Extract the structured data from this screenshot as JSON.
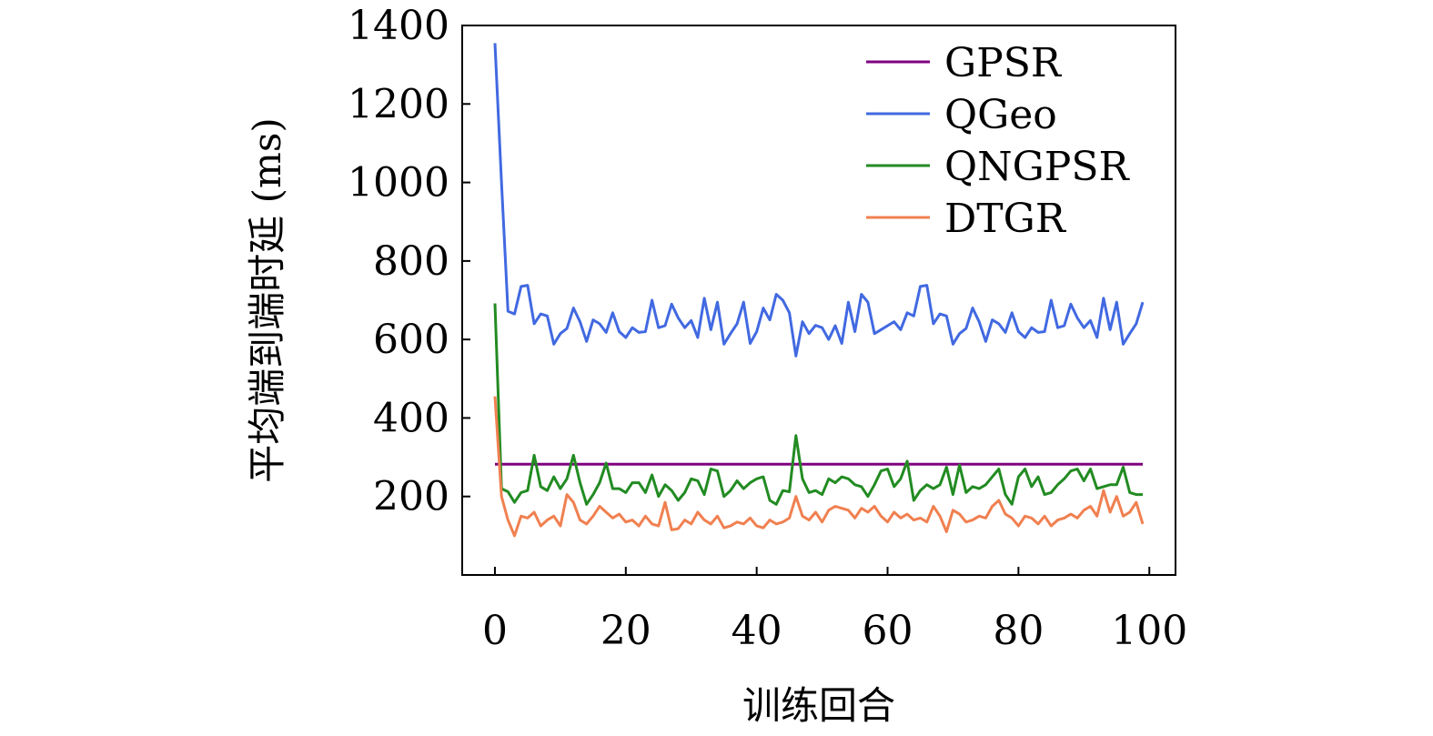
{
  "chart_data": {
    "type": "line",
    "title": "",
    "xlabel": "训练回合",
    "ylabel": "平均端到端时延 (ms)",
    "xlim": [
      -5,
      104
    ],
    "ylim": [
      0,
      1400
    ],
    "xticks": [
      0,
      20,
      40,
      60,
      80,
      100
    ],
    "yticks": [
      200,
      400,
      600,
      800,
      1000,
      1200,
      1400
    ],
    "grid": false,
    "legend_position": "top-right",
    "series": [
      {
        "name": "GPSR",
        "color": "#800080",
        "x": [
          0,
          99
        ],
        "y": [
          282,
          282
        ]
      },
      {
        "name": "QGeo",
        "color": "#4169E1",
        "x": [
          0,
          1,
          2,
          3,
          4,
          5,
          6,
          7,
          8,
          9,
          10,
          11,
          12,
          13,
          14,
          15,
          16,
          17,
          18,
          19,
          20,
          21,
          22,
          23,
          24,
          25,
          26,
          27,
          28,
          29,
          30,
          31,
          32,
          33,
          34,
          35,
          36,
          37,
          38,
          39,
          40,
          41,
          42,
          43,
          44,
          45,
          46,
          47,
          48,
          49,
          50,
          51,
          52,
          53,
          54,
          55,
          56,
          57,
          58,
          59,
          60,
          61,
          62,
          63,
          64,
          65,
          66,
          67,
          68,
          69,
          70,
          71,
          72,
          73,
          74,
          75,
          76,
          77,
          78,
          79,
          80,
          81,
          82,
          83,
          84,
          85,
          86,
          87,
          88,
          89,
          90,
          91,
          92,
          93,
          94,
          95,
          96,
          97,
          98,
          99
        ],
        "y": [
          1355,
          1000,
          672,
          665,
          735,
          738,
          640,
          665,
          660,
          588,
          615,
          628,
          680,
          645,
          595,
          650,
          640,
          618,
          668,
          620,
          605,
          630,
          618,
          620,
          700,
          630,
          635,
          690,
          655,
          630,
          648,
          605,
          705,
          625,
          695,
          588,
          615,
          640,
          695,
          590,
          620,
          680,
          650,
          715,
          700,
          668,
          558,
          645,
          615,
          636,
          630,
          600,
          635,
          590,
          695,
          620,
          715,
          695,
          615,
          625,
          635,
          645,
          625,
          668,
          660,
          735,
          738,
          640,
          665,
          660,
          588,
          615,
          628,
          680,
          645,
          595,
          650,
          640,
          618,
          668,
          620,
          605,
          630,
          618,
          620,
          700,
          630,
          635,
          690,
          655,
          630,
          648,
          605,
          705,
          625,
          695,
          588,
          615,
          640,
          695
        ]
      },
      {
        "name": "QNGPSR",
        "color": "#228B22",
        "x": [
          0,
          1,
          2,
          3,
          4,
          5,
          6,
          7,
          8,
          9,
          10,
          11,
          12,
          13,
          14,
          15,
          16,
          17,
          18,
          19,
          20,
          21,
          22,
          23,
          24,
          25,
          26,
          27,
          28,
          29,
          30,
          31,
          32,
          33,
          34,
          35,
          36,
          37,
          38,
          39,
          40,
          41,
          42,
          43,
          44,
          45,
          46,
          47,
          48,
          49,
          50,
          51,
          52,
          53,
          54,
          55,
          56,
          57,
          58,
          59,
          60,
          61,
          62,
          63,
          64,
          65,
          66,
          67,
          68,
          69,
          70,
          71,
          72,
          73,
          74,
          75,
          76,
          77,
          78,
          79,
          80,
          81,
          82,
          83,
          84,
          85,
          86,
          87,
          88,
          89,
          90,
          91,
          92,
          93,
          94,
          95,
          96,
          97,
          98,
          99
        ],
        "y": [
          692,
          220,
          212,
          185,
          210,
          215,
          305,
          225,
          215,
          250,
          220,
          245,
          305,
          235,
          180,
          205,
          235,
          285,
          220,
          220,
          210,
          235,
          235,
          210,
          255,
          200,
          230,
          215,
          190,
          210,
          245,
          240,
          205,
          270,
          265,
          200,
          215,
          240,
          220,
          235,
          245,
          250,
          190,
          180,
          215,
          212,
          355,
          245,
          210,
          215,
          205,
          245,
          235,
          250,
          245,
          230,
          225,
          200,
          230,
          265,
          270,
          225,
          245,
          290,
          190,
          215,
          230,
          220,
          230,
          275,
          205,
          280,
          210,
          225,
          220,
          230,
          250,
          270,
          205,
          180,
          250,
          270,
          225,
          250,
          205,
          210,
          230,
          245,
          265,
          270,
          240,
          270,
          220,
          225,
          230,
          230,
          275,
          210,
          205,
          205
        ]
      },
      {
        "name": "DTGR",
        "color": "#F08050",
        "x": [
          0,
          1,
          2,
          3,
          4,
          5,
          6,
          7,
          8,
          9,
          10,
          11,
          12,
          13,
          14,
          15,
          16,
          17,
          18,
          19,
          20,
          21,
          22,
          23,
          24,
          25,
          26,
          27,
          28,
          29,
          30,
          31,
          32,
          33,
          34,
          35,
          36,
          37,
          38,
          39,
          40,
          41,
          42,
          43,
          44,
          45,
          46,
          47,
          48,
          49,
          50,
          51,
          52,
          53,
          54,
          55,
          56,
          57,
          58,
          59,
          60,
          61,
          62,
          63,
          64,
          65,
          66,
          67,
          68,
          69,
          70,
          71,
          72,
          73,
          74,
          75,
          76,
          77,
          78,
          79,
          80,
          81,
          82,
          83,
          84,
          85,
          86,
          87,
          88,
          89,
          90,
          91,
          92,
          93,
          94,
          95,
          96,
          97,
          98,
          99
        ],
        "y": [
          455,
          200,
          140,
          100,
          150,
          145,
          160,
          125,
          140,
          150,
          125,
          205,
          185,
          140,
          130,
          150,
          175,
          160,
          145,
          155,
          135,
          140,
          125,
          150,
          130,
          125,
          185,
          115,
          118,
          140,
          130,
          160,
          140,
          130,
          150,
          120,
          125,
          135,
          130,
          145,
          125,
          120,
          140,
          130,
          135,
          145,
          200,
          150,
          140,
          160,
          135,
          165,
          175,
          170,
          165,
          145,
          170,
          160,
          175,
          150,
          135,
          160,
          145,
          155,
          140,
          145,
          135,
          175,
          150,
          110,
          165,
          155,
          135,
          140,
          150,
          145,
          175,
          190,
          155,
          145,
          125,
          150,
          145,
          130,
          150,
          125,
          140,
          145,
          155,
          145,
          165,
          175,
          150,
          215,
          160,
          200,
          150,
          160,
          185,
          130
        ]
      }
    ]
  }
}
